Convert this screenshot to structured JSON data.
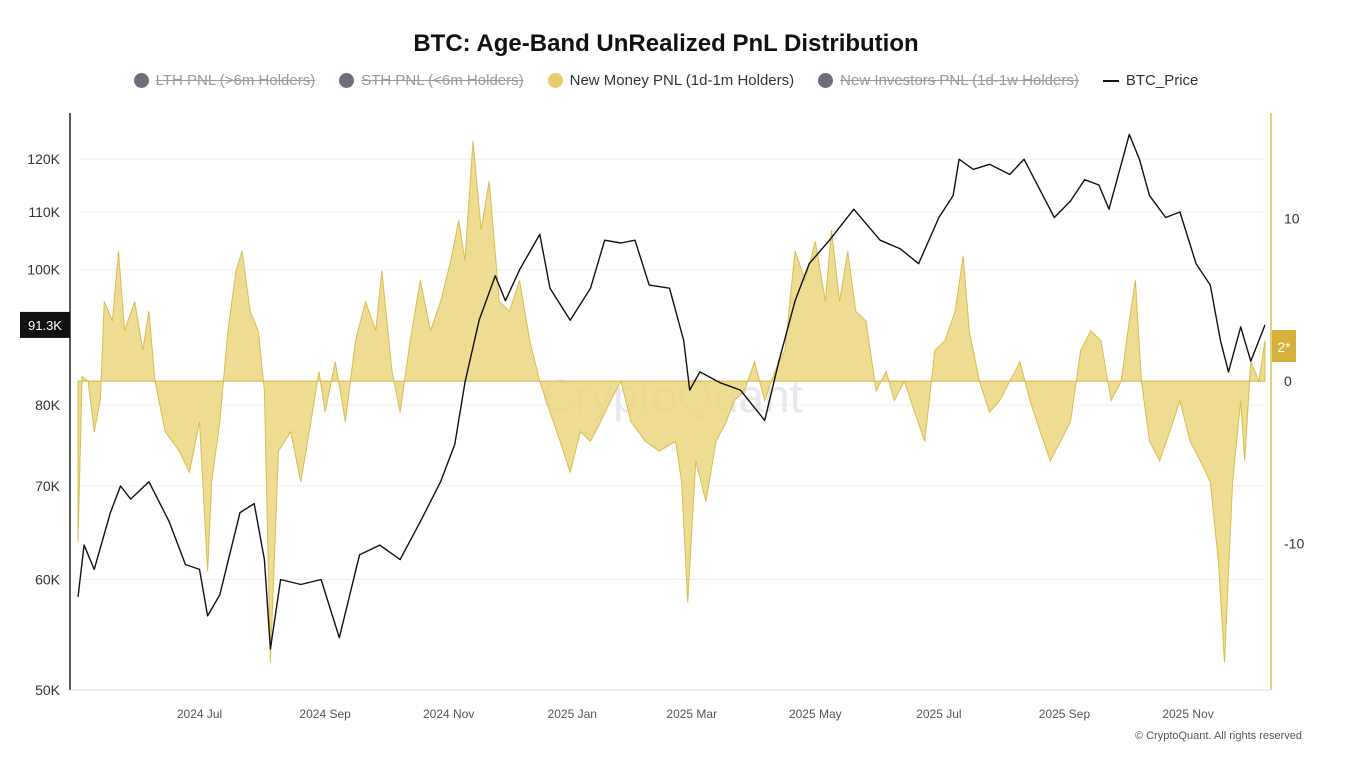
{
  "chart_data": {
    "type": "line",
    "title": "BTC: Age-Band UnRealized PnL Distribution",
    "legend_placement": "top",
    "legend": [
      {
        "name": "LTH PNL (>6m Holders)",
        "color": "#6e6e7a",
        "hidden": true
      },
      {
        "name": "STH PNL (<6m Holders)",
        "color": "#6e6e7a",
        "hidden": true
      },
      {
        "name": "New Money PNL (1d-1m Holders)",
        "color": "#e6cc6a",
        "hidden": false
      },
      {
        "name": "New Investors PNL (1d-1w Holders)",
        "color": "#6e6e7a",
        "hidden": true
      },
      {
        "name": "BTC_Price",
        "color": "#111111",
        "hidden": false
      }
    ],
    "x_range": [
      "2024-05-02",
      "2025-12-09"
    ],
    "x_ticks": [
      {
        "date": "2024-07-01",
        "label": "2024 Jul"
      },
      {
        "date": "2024-09-01",
        "label": "2024 Sep"
      },
      {
        "date": "2024-11-01",
        "label": "2024 Nov"
      },
      {
        "date": "2025-01-01",
        "label": "2025 Jan"
      },
      {
        "date": "2025-03-01",
        "label": "2025 Mar"
      },
      {
        "date": "2025-05-01",
        "label": "2025 May"
      },
      {
        "date": "2025-07-01",
        "label": "2025 Jul"
      },
      {
        "date": "2025-09-01",
        "label": "2025 Sep"
      },
      {
        "date": "2025-11-01",
        "label": "2025 Nov"
      }
    ],
    "left_axis": {
      "scale": "log",
      "range": [
        50000,
        129500
      ],
      "ticks": [
        {
          "value": 50000,
          "label": "50K"
        },
        {
          "value": 60000,
          "label": "60K"
        },
        {
          "value": 70000,
          "label": "70K"
        },
        {
          "value": 80000,
          "label": "80K"
        },
        {
          "value": 100000,
          "label": "100K"
        },
        {
          "value": 110000,
          "label": "110K"
        },
        {
          "value": 120000,
          "label": "120K"
        }
      ],
      "current_label": "91.3K",
      "grid": true
    },
    "right_axis": {
      "scale": "linear",
      "range": [
        -19,
        16.5
      ],
      "ticks": [
        {
          "value": -10,
          "label": "-10"
        },
        {
          "value": 0,
          "label": "0"
        },
        {
          "value": 10,
          "label": "10"
        }
      ],
      "current_label": "2*"
    },
    "series": [
      {
        "name": "New Money PNL (1d-1m Holders)",
        "axis": "right",
        "kind": "area",
        "points": [
          [
            "2024-05-02",
            -9.9
          ],
          [
            "2024-05-04",
            0.3
          ],
          [
            "2024-05-07",
            0
          ],
          [
            "2024-05-10",
            -3.1
          ],
          [
            "2024-05-13",
            -1.2
          ],
          [
            "2024-05-15",
            4.9
          ],
          [
            "2024-05-19",
            3.7
          ],
          [
            "2024-05-22",
            8
          ],
          [
            "2024-05-25",
            3.1
          ],
          [
            "2024-05-30",
            4.9
          ],
          [
            "2024-06-03",
            1.9
          ],
          [
            "2024-06-06",
            4.3
          ],
          [
            "2024-06-09",
            0
          ],
          [
            "2024-06-14",
            -3.1
          ],
          [
            "2024-06-21",
            -4.3
          ],
          [
            "2024-06-26",
            -5.6
          ],
          [
            "2024-07-01",
            -2.5
          ],
          [
            "2024-07-05",
            -11.7
          ],
          [
            "2024-07-07",
            -6.2
          ],
          [
            "2024-07-11",
            -2.5
          ],
          [
            "2024-07-15",
            3.1
          ],
          [
            "2024-07-19",
            6.8
          ],
          [
            "2024-07-22",
            8
          ],
          [
            "2024-07-26",
            4.3
          ],
          [
            "2024-07-30",
            3.1
          ],
          [
            "2024-08-02",
            -0.6
          ],
          [
            "2024-08-05",
            -17.3
          ],
          [
            "2024-08-09",
            -4.3
          ],
          [
            "2024-08-15",
            -3.1
          ],
          [
            "2024-08-20",
            -6.2
          ],
          [
            "2024-08-25",
            -2.5
          ],
          [
            "2024-08-29",
            0.6
          ],
          [
            "2024-09-01",
            -1.9
          ],
          [
            "2024-09-06",
            1.2
          ],
          [
            "2024-09-11",
            -2.5
          ],
          [
            "2024-09-16",
            2.5
          ],
          [
            "2024-09-21",
            4.9
          ],
          [
            "2024-09-26",
            3.1
          ],
          [
            "2024-09-29",
            6.8
          ],
          [
            "2024-10-04",
            0.6
          ],
          [
            "2024-10-08",
            -1.9
          ],
          [
            "2024-10-13",
            2.5
          ],
          [
            "2024-10-18",
            6.2
          ],
          [
            "2024-10-23",
            3.1
          ],
          [
            "2024-10-28",
            4.9
          ],
          [
            "2024-11-02",
            7.4
          ],
          [
            "2024-11-06",
            9.9
          ],
          [
            "2024-11-09",
            7.4
          ],
          [
            "2024-11-13",
            14.8
          ],
          [
            "2024-11-17",
            9.3
          ],
          [
            "2024-11-21",
            12.3
          ],
          [
            "2024-11-26",
            4.9
          ],
          [
            "2024-12-01",
            4.3
          ],
          [
            "2024-12-06",
            6.2
          ],
          [
            "2024-12-11",
            2.5
          ],
          [
            "2024-12-16",
            0
          ],
          [
            "2024-12-21",
            -1.9
          ],
          [
            "2024-12-26",
            -3.7
          ],
          [
            "2024-12-31",
            -5.6
          ],
          [
            "2025-01-05",
            -3.1
          ],
          [
            "2025-01-10",
            -3.7
          ],
          [
            "2025-01-15",
            -2.5
          ],
          [
            "2025-01-20",
            -1.2
          ],
          [
            "2025-01-25",
            0
          ],
          [
            "2025-01-30",
            -2.5
          ],
          [
            "2025-02-06",
            -3.7
          ],
          [
            "2025-02-13",
            -4.3
          ],
          [
            "2025-02-21",
            -3.7
          ],
          [
            "2025-02-24",
            -6.2
          ],
          [
            "2025-02-27",
            -13.6
          ],
          [
            "2025-03-03",
            -4.9
          ],
          [
            "2025-03-08",
            -7.4
          ],
          [
            "2025-03-13",
            -3.7
          ],
          [
            "2025-03-18",
            -2.5
          ],
          [
            "2025-03-22",
            -1.2
          ],
          [
            "2025-03-27",
            -0.6
          ],
          [
            "2025-04-01",
            1.2
          ],
          [
            "2025-04-06",
            -1.2
          ],
          [
            "2025-04-11",
            0.6
          ],
          [
            "2025-04-16",
            1.9
          ],
          [
            "2025-04-21",
            8
          ],
          [
            "2025-04-26",
            6.2
          ],
          [
            "2025-05-01",
            8.6
          ],
          [
            "2025-05-06",
            4.9
          ],
          [
            "2025-05-09",
            9.3
          ],
          [
            "2025-05-13",
            4.9
          ],
          [
            "2025-05-17",
            8
          ],
          [
            "2025-05-21",
            4.3
          ],
          [
            "2025-05-26",
            3.7
          ],
          [
            "2025-05-31",
            -0.6
          ],
          [
            "2025-06-05",
            0.6
          ],
          [
            "2025-06-09",
            -1.2
          ],
          [
            "2025-06-14",
            0
          ],
          [
            "2025-06-19",
            -1.9
          ],
          [
            "2025-06-24",
            -3.7
          ],
          [
            "2025-06-29",
            1.9
          ],
          [
            "2025-07-04",
            2.5
          ],
          [
            "2025-07-09",
            4.3
          ],
          [
            "2025-07-13",
            7.7
          ],
          [
            "2025-07-16",
            3.1
          ],
          [
            "2025-07-21",
            0
          ],
          [
            "2025-07-26",
            -1.9
          ],
          [
            "2025-07-31",
            -1.2
          ],
          [
            "2025-08-05",
            0
          ],
          [
            "2025-08-10",
            1.2
          ],
          [
            "2025-08-15",
            -1.2
          ],
          [
            "2025-08-20",
            -3.1
          ],
          [
            "2025-08-25",
            -4.9
          ],
          [
            "2025-08-30",
            -3.7
          ],
          [
            "2025-09-04",
            -2.5
          ],
          [
            "2025-09-09",
            1.9
          ],
          [
            "2025-09-14",
            3.1
          ],
          [
            "2025-09-19",
            2.5
          ],
          [
            "2025-09-24",
            -1.2
          ],
          [
            "2025-09-29",
            0
          ],
          [
            "2025-10-03",
            3.7
          ],
          [
            "2025-10-06",
            6.2
          ],
          [
            "2025-10-09",
            0
          ],
          [
            "2025-10-13",
            -3.7
          ],
          [
            "2025-10-18",
            -4.9
          ],
          [
            "2025-10-23",
            -3.1
          ],
          [
            "2025-10-28",
            -1.2
          ],
          [
            "2025-11-02",
            -3.7
          ],
          [
            "2025-11-07",
            -4.9
          ],
          [
            "2025-11-12",
            -6.2
          ],
          [
            "2025-11-16",
            -11.1
          ],
          [
            "2025-11-19",
            -17.3
          ],
          [
            "2025-11-23",
            -6.2
          ],
          [
            "2025-11-27",
            -1.2
          ],
          [
            "2025-11-29",
            -4.9
          ],
          [
            "2025-12-02",
            1.2
          ],
          [
            "2025-12-06",
            0
          ],
          [
            "2025-12-09",
            2.5
          ]
        ]
      },
      {
        "name": "BTC_Price",
        "axis": "left",
        "kind": "line",
        "points": [
          [
            "2024-05-02",
            58300
          ],
          [
            "2024-05-05",
            63500
          ],
          [
            "2024-05-10",
            61000
          ],
          [
            "2024-05-18",
            67000
          ],
          [
            "2024-05-23",
            70000
          ],
          [
            "2024-05-28",
            68500
          ],
          [
            "2024-06-06",
            70500
          ],
          [
            "2024-06-16",
            66000
          ],
          [
            "2024-06-24",
            61500
          ],
          [
            "2024-07-01",
            61000
          ],
          [
            "2024-07-05",
            56500
          ],
          [
            "2024-07-11",
            58500
          ],
          [
            "2024-07-21",
            67000
          ],
          [
            "2024-07-28",
            68000
          ],
          [
            "2024-08-02",
            62000
          ],
          [
            "2024-08-05",
            53500
          ],
          [
            "2024-08-10",
            60000
          ],
          [
            "2024-08-20",
            59500
          ],
          [
            "2024-08-30",
            60000
          ],
          [
            "2024-09-08",
            54500
          ],
          [
            "2024-09-18",
            62500
          ],
          [
            "2024-09-28",
            63500
          ],
          [
            "2024-10-08",
            62000
          ],
          [
            "2024-10-18",
            66000
          ],
          [
            "2024-10-28",
            70500
          ],
          [
            "2024-11-04",
            75000
          ],
          [
            "2024-11-09",
            83000
          ],
          [
            "2024-11-16",
            92000
          ],
          [
            "2024-11-24",
            99000
          ],
          [
            "2024-11-29",
            95000
          ],
          [
            "2024-12-06",
            100000
          ],
          [
            "2024-12-16",
            106000
          ],
          [
            "2024-12-21",
            97000
          ],
          [
            "2024-12-31",
            92000
          ],
          [
            "2025-01-10",
            97000
          ],
          [
            "2025-01-17",
            105000
          ],
          [
            "2025-01-25",
            104500
          ],
          [
            "2025-02-01",
            105000
          ],
          [
            "2025-02-08",
            97500
          ],
          [
            "2025-02-18",
            97000
          ],
          [
            "2025-02-25",
            89000
          ],
          [
            "2025-02-28",
            82000
          ],
          [
            "2025-03-05",
            84500
          ],
          [
            "2025-03-15",
            83000
          ],
          [
            "2025-03-25",
            82000
          ],
          [
            "2025-04-06",
            78000
          ],
          [
            "2025-04-13",
            86000
          ],
          [
            "2025-04-21",
            95000
          ],
          [
            "2025-04-28",
            101000
          ],
          [
            "2025-05-08",
            105000
          ],
          [
            "2025-05-20",
            110500
          ],
          [
            "2025-06-02",
            105000
          ],
          [
            "2025-06-12",
            103500
          ],
          [
            "2025-06-21",
            101000
          ],
          [
            "2025-07-01",
            109000
          ],
          [
            "2025-07-08",
            113000
          ],
          [
            "2025-07-11",
            120000
          ],
          [
            "2025-07-18",
            118000
          ],
          [
            "2025-07-26",
            119000
          ],
          [
            "2025-08-05",
            117000
          ],
          [
            "2025-08-12",
            120000
          ],
          [
            "2025-08-20",
            114000
          ],
          [
            "2025-08-27",
            109000
          ],
          [
            "2025-09-04",
            112000
          ],
          [
            "2025-09-11",
            116000
          ],
          [
            "2025-09-18",
            115000
          ],
          [
            "2025-09-23",
            110500
          ],
          [
            "2025-10-03",
            125000
          ],
          [
            "2025-10-08",
            120000
          ],
          [
            "2025-10-13",
            113000
          ],
          [
            "2025-10-21",
            109000
          ],
          [
            "2025-10-28",
            110000
          ],
          [
            "2025-11-05",
            101000
          ],
          [
            "2025-11-12",
            97500
          ],
          [
            "2025-11-17",
            89000
          ],
          [
            "2025-11-21",
            84500
          ],
          [
            "2025-11-27",
            91000
          ],
          [
            "2025-12-02",
            86000
          ],
          [
            "2025-12-09",
            91300
          ]
        ]
      }
    ],
    "watermark": "CryptoQuant",
    "copyright": "© CryptoQuant. All rights reserved"
  },
  "colors": {
    "area_fill": "#ecd680",
    "area_stroke": "#d8bd4f",
    "price": "#111111",
    "right_axis": "#d9bf55",
    "badge_left": "#111111",
    "badge_right": "#d4b23c"
  }
}
